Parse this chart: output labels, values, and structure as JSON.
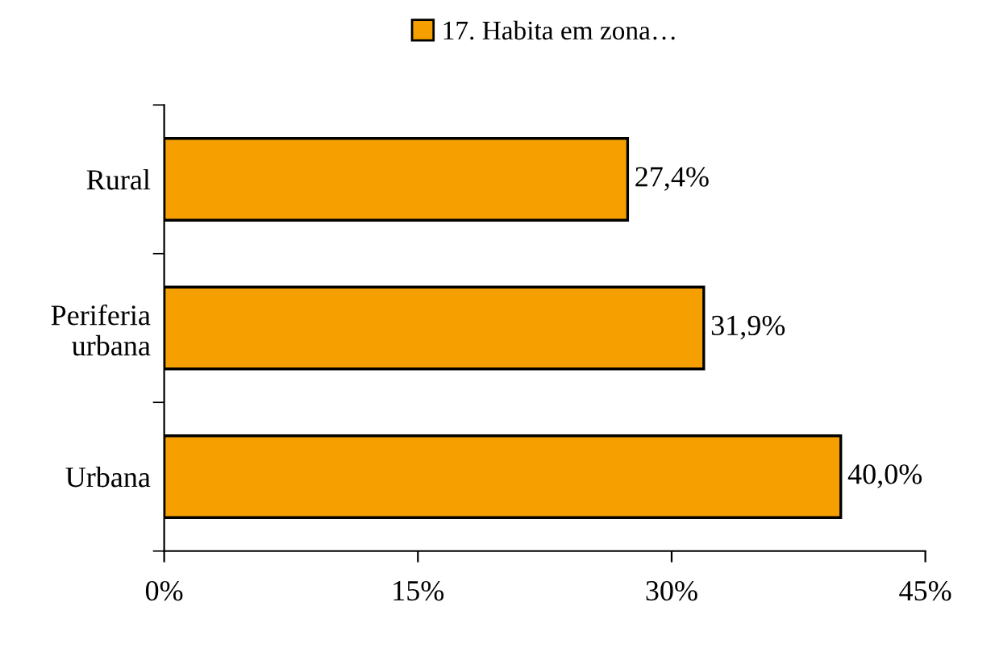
{
  "chart_data": {
    "type": "bar",
    "orientation": "horizontal",
    "categories": [
      "Rural",
      "Periferia urbana",
      "Urbana"
    ],
    "series": [
      {
        "name": "17. Habita em zona…",
        "color": "#f5a000",
        "values": [
          27.4,
          31.9,
          40.0
        ],
        "value_labels": [
          "27,4%",
          "31,9%",
          "40,0%"
        ]
      }
    ],
    "xlim": [
      0,
      45
    ],
    "xticks": [
      {
        "value": 0,
        "label": "0%"
      },
      {
        "value": 15,
        "label": "15%"
      },
      {
        "value": 30,
        "label": "30%"
      },
      {
        "value": 45,
        "label": "45%"
      }
    ],
    "grid": false,
    "legend": "top"
  }
}
